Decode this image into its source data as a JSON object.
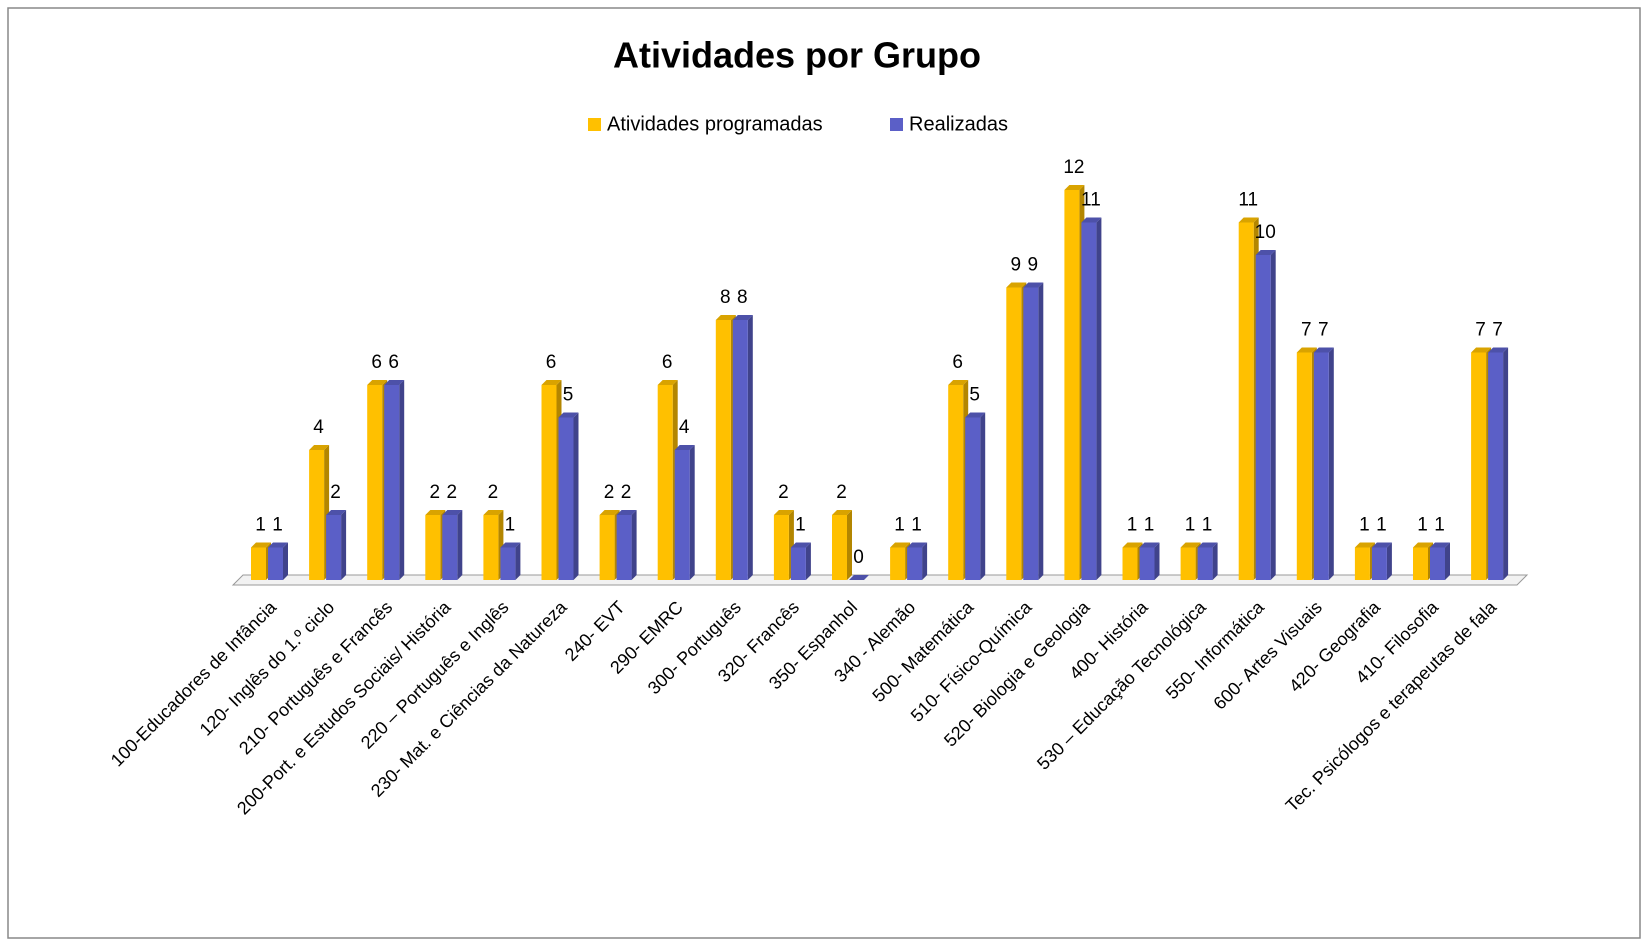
{
  "chart_data": {
    "type": "bar3d",
    "title": "Atividades por Grupo",
    "categories": [
      "100-Educadores de Infância",
      "120- Inglês do 1.º ciclo",
      "210- Português e Francês",
      "200-Port. e Estudos Sociais/ História",
      "220 – Português e Inglês",
      "230- Mat. e Ciências da Natureza",
      "240- EVT",
      "290- EMRC",
      "300- Português",
      "320- Francês",
      "350- Espanhol",
      "340 - Alemão",
      "500- Matemática",
      "510- Físico-Química",
      "520- Biologia e Geologia",
      "400- História",
      "530 – Educação Tecnológica",
      "550- Informática",
      "600- Artes Visuais",
      "420- Geografia",
      "410- Filosofia",
      "Tec. Psicólogos e terapeutas de fala"
    ],
    "series": [
      {
        "name": "Atividades programadas",
        "color": "#FFC000",
        "values": [
          1,
          4,
          6,
          2,
          2,
          6,
          2,
          6,
          8,
          2,
          2,
          1,
          6,
          9,
          12,
          1,
          1,
          11,
          7,
          1,
          1,
          7
        ]
      },
      {
        "name": "Realizadas",
        "color": "#5B5FC7",
        "values": [
          1,
          2,
          6,
          2,
          1,
          5,
          2,
          4,
          8,
          1,
          0,
          1,
          5,
          9,
          11,
          1,
          1,
          10,
          7,
          1,
          1,
          7
        ]
      }
    ],
    "legend": "top"
  }
}
